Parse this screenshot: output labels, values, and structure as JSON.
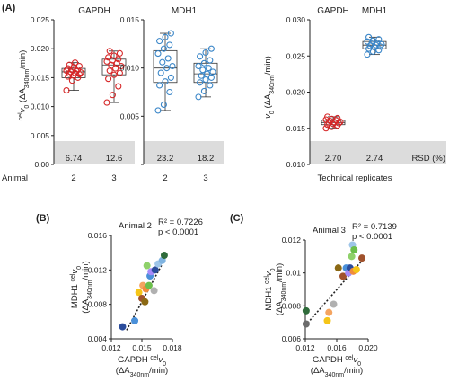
{
  "panel_labels": {
    "a": "(A)",
    "b": "(B)",
    "c": "(C)"
  },
  "chart_data": [
    {
      "type": "box",
      "panel": "A1",
      "ylabel_prefix": "cel",
      "ylabel_var": "v",
      "ylabel_sub": "0",
      "ylabel_rest": " (ΔA",
      "ylabel_sub2": "340nm",
      "ylabel_end": "/min)",
      "ylim": [
        0,
        0.025
      ],
      "yticks": [
        0,
        0.005,
        0.01,
        0.015,
        0.02,
        0.025
      ],
      "ytick_labels": [
        "0.00",
        "0.005",
        "0.010",
        "0.015",
        "0.020",
        "0.025"
      ],
      "groups": [
        {
          "title": "GAPDH",
          "color": "#d62728",
          "xlabels": [
            "2",
            "3"
          ],
          "rsd": [
            "6.74",
            "12.6"
          ],
          "boxes": [
            {
              "min": 0.0128,
              "q1": 0.015,
              "median": 0.016,
              "q3": 0.0166,
              "max": 0.0176,
              "points": [
                0.0128,
                0.0145,
                0.015,
                0.0152,
                0.0154,
                0.0156,
                0.0157,
                0.0158,
                0.0159,
                0.016,
                0.0161,
                0.0162,
                0.0163,
                0.0164,
                0.0166,
                0.0168,
                0.017,
                0.0172,
                0.0176
              ]
            },
            {
              "min": 0.0107,
              "q1": 0.0155,
              "median": 0.0172,
              "q3": 0.0182,
              "max": 0.0196,
              "points": [
                0.0107,
                0.012,
                0.0135,
                0.0148,
                0.0155,
                0.0158,
                0.0162,
                0.0166,
                0.017,
                0.0172,
                0.0175,
                0.0178,
                0.018,
                0.0182,
                0.0185,
                0.0188,
                0.0192,
                0.0196
              ]
            }
          ]
        },
        {
          "title": "MDH1",
          "color": "#3a86c8",
          "xlabels": [
            "2",
            "3"
          ],
          "rsd": [
            "23.2",
            "18.2"
          ],
          "ylim": [
            0,
            0.015
          ],
          "yticks": [
            0,
            0.005,
            0.01,
            0.015
          ],
          "ytick_labels": [
            "",
            "0.005",
            "0.010",
            "0.015"
          ],
          "boxes": [
            {
              "min": 0.0056,
              "q1": 0.0085,
              "median": 0.01,
              "q3": 0.0118,
              "max": 0.0136,
              "points": [
                0.0056,
                0.0062,
                0.0075,
                0.0082,
                0.0086,
                0.009,
                0.0095,
                0.01,
                0.0102,
                0.0106,
                0.011,
                0.0115,
                0.012,
                0.0124,
                0.0128,
                0.0132,
                0.0136
              ]
            },
            {
              "min": 0.007,
              "q1": 0.0085,
              "median": 0.0094,
              "q3": 0.0105,
              "max": 0.012,
              "points": [
                0.007,
                0.0076,
                0.0082,
                0.0085,
                0.0088,
                0.009,
                0.0092,
                0.0094,
                0.0096,
                0.0098,
                0.01,
                0.0102,
                0.0105,
                0.0108,
                0.0112,
                0.0116,
                0.012
              ]
            }
          ]
        }
      ],
      "xaxis_title": "Animal",
      "strip_baseline": "0.00"
    },
    {
      "type": "box",
      "panel": "A2",
      "ylabel_prefix": "v",
      "ylabel_sub": "0",
      "ylabel_rest": " (ΔA",
      "ylabel_sub2": "340nm",
      "ylabel_end": "/min)",
      "ylim": [
        0.01,
        0.03
      ],
      "yticks": [
        0.01,
        0.015,
        0.02,
        0.025,
        0.03
      ],
      "ytick_labels": [
        "0.010",
        "0.015",
        "0.020",
        "0.025",
        "0.030"
      ],
      "titles": [
        "GAPDH",
        "MDH1"
      ],
      "colors": [
        "#d62728",
        "#3a86c8"
      ],
      "rsd": [
        "2.70",
        "2.74"
      ],
      "rsd_label": "RSD (%)",
      "xaxis_title": "Technical replicates",
      "boxes": [
        {
          "min": 0.015,
          "q1": 0.0155,
          "median": 0.0158,
          "q3": 0.0161,
          "max": 0.0166,
          "points": [
            0.015,
            0.0152,
            0.0154,
            0.0155,
            0.0156,
            0.0157,
            0.0158,
            0.0158,
            0.0159,
            0.016,
            0.0161,
            0.0162,
            0.0163,
            0.0164,
            0.0166
          ]
        },
        {
          "min": 0.0252,
          "q1": 0.026,
          "median": 0.0265,
          "q3": 0.027,
          "max": 0.0276,
          "points": [
            0.0252,
            0.0256,
            0.0258,
            0.026,
            0.0262,
            0.0263,
            0.0264,
            0.0265,
            0.0266,
            0.0267,
            0.0268,
            0.027,
            0.0271,
            0.0273,
            0.0276
          ]
        }
      ]
    },
    {
      "type": "scatter",
      "panel": "B",
      "title": "Animal 2",
      "r2": "R² = 0.7226",
      "p": "p < 0.0001",
      "xlim": [
        0.012,
        0.018
      ],
      "ylim": [
        0.004,
        0.016
      ],
      "xticks": [
        "0.012",
        "0.015",
        "0.018"
      ],
      "yticks": [
        "0.004",
        "0.008",
        "0.012",
        "0.016"
      ],
      "xlabel_a": "GAPDH",
      "xlabel_b": "(ΔA",
      "xlabel_sub": "340nm",
      "xlabel_c": "/min)",
      "ylabel_a": "MDH1",
      "ylabel_b": "(ΔA",
      "ylabel_sub": "340nm",
      "ylabel_c": "/min)",
      "fit": [
        [
          0.0135,
          0.005
        ],
        [
          0.0175,
          0.0138
        ]
      ],
      "points": [
        {
          "x": 0.0131,
          "y": 0.0054,
          "c": "#2b4c9b"
        },
        {
          "x": 0.0143,
          "y": 0.0061,
          "c": "#4a90d9"
        },
        {
          "x": 0.0147,
          "y": 0.0094,
          "c": "#f5c518"
        },
        {
          "x": 0.015,
          "y": 0.0087,
          "c": "#a0522d"
        },
        {
          "x": 0.0153,
          "y": 0.0083,
          "c": "#8b6914"
        },
        {
          "x": 0.0151,
          "y": 0.0102,
          "c": "#f4a460"
        },
        {
          "x": 0.0154,
          "y": 0.0098,
          "c": "#f08c3c"
        },
        {
          "x": 0.0157,
          "y": 0.0102,
          "c": "#6cbf4b"
        },
        {
          "x": 0.0158,
          "y": 0.0113,
          "c": "#4a90d9"
        },
        {
          "x": 0.0159,
          "y": 0.0118,
          "c": "#a78bfa"
        },
        {
          "x": 0.0155,
          "y": 0.0125,
          "c": "#8fd16a"
        },
        {
          "x": 0.0163,
          "y": 0.012,
          "c": "#2b4c9b"
        },
        {
          "x": 0.0166,
          "y": 0.0127,
          "c": "#9ec5e8"
        },
        {
          "x": 0.017,
          "y": 0.0131,
          "c": "#7fb3e0"
        },
        {
          "x": 0.0172,
          "y": 0.0137,
          "c": "#2f6b3a"
        },
        {
          "x": 0.0162,
          "y": 0.0096,
          "c": "#b0b0b0"
        }
      ]
    },
    {
      "type": "scatter",
      "panel": "C",
      "title": "Animal 3",
      "r2": "R² = 0.7139",
      "p": "p < 0.0001",
      "xlim": [
        0.012,
        0.02
      ],
      "ylim": [
        0.006,
        0.012
      ],
      "xticks": [
        "0.012",
        "0.016",
        "0.020"
      ],
      "yticks": [
        "0.006",
        "0.008",
        "0.01",
        "0.012"
      ],
      "xlabel_a": "GAPDH",
      "xlabel_b": "(ΔA",
      "xlabel_sub": "340nm",
      "xlabel_c": "/min)",
      "ylabel_a": "MDH1",
      "ylabel_b": "(ΔA",
      "ylabel_sub": "340nm",
      "ylabel_c": "/min)",
      "fit": [
        [
          0.012,
          0.0068
        ],
        [
          0.0195,
          0.0109
        ]
      ],
      "points": [
        {
          "x": 0.0121,
          "y": 0.0077,
          "c": "#2f6b3a"
        },
        {
          "x": 0.0121,
          "y": 0.0069,
          "c": "#6b6b6b"
        },
        {
          "x": 0.0148,
          "y": 0.0071,
          "c": "#f5c518"
        },
        {
          "x": 0.015,
          "y": 0.0076,
          "c": "#f4a460"
        },
        {
          "x": 0.0156,
          "y": 0.0081,
          "c": "#b0b0b0"
        },
        {
          "x": 0.0162,
          "y": 0.0103,
          "c": "#8b6914"
        },
        {
          "x": 0.0168,
          "y": 0.0098,
          "c": "#a0522d"
        },
        {
          "x": 0.0172,
          "y": 0.0103,
          "c": "#4a90d9"
        },
        {
          "x": 0.0175,
          "y": 0.01,
          "c": "#a78bfa"
        },
        {
          "x": 0.0177,
          "y": 0.0103,
          "c": "#2b4c9b"
        },
        {
          "x": 0.0179,
          "y": 0.011,
          "c": "#8fd16a"
        },
        {
          "x": 0.018,
          "y": 0.0117,
          "c": "#9ec5e8"
        },
        {
          "x": 0.0181,
          "y": 0.0101,
          "c": "#f08c3c"
        },
        {
          "x": 0.0182,
          "y": 0.0114,
          "c": "#6cbf4b"
        },
        {
          "x": 0.0185,
          "y": 0.0102,
          "c": "#f5c518"
        },
        {
          "x": 0.0192,
          "y": 0.0109,
          "c": "#a0522d"
        }
      ]
    }
  ]
}
